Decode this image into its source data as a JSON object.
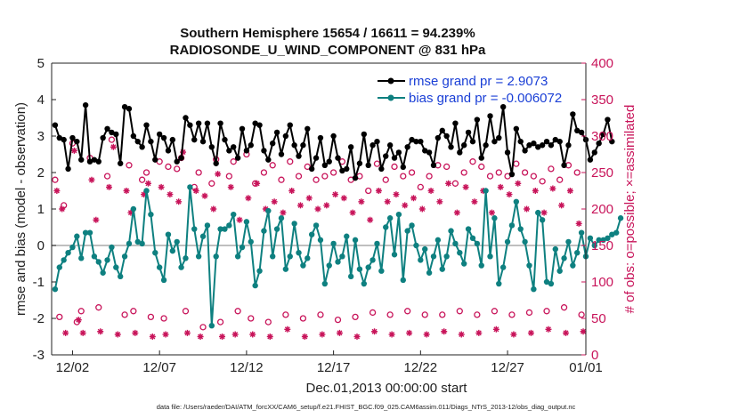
{
  "chart_data": {
    "type": "line",
    "title": "Southern Hemisphere 15654 / 16611 = 94.239%",
    "subtitle": "RADIOSONDE_U_WIND_COMPONENT @ 831 hPa",
    "xlabel": "Dec.01,2013 00:00:00 start",
    "ylabel": "rmse and bias (model - observation)",
    "y2label": "# of obs: o=possible; ×=assimilated",
    "footnote": "data file: /Users/raeder/DAI/ATM_forcXX/CAM6_setup/f.e21.FHIST_BGC.f09_025.CAM6assim.011/Diags_NTrS_2013-12/obs_diag_output.nc",
    "xlim": [
      0.8,
      31.5
    ],
    "ylim": [
      -3,
      5
    ],
    "y2lim": [
      0,
      400
    ],
    "x_ticks": [
      2,
      7,
      12,
      17,
      22,
      27,
      32
    ],
    "x_tick_labels": [
      "12/02",
      "12/07",
      "12/12",
      "12/17",
      "12/22",
      "12/27",
      "01/01"
    ],
    "y_ticks": [
      -3,
      -2,
      -1,
      0,
      1,
      2,
      3,
      4,
      5
    ],
    "y_tick_labels": [
      "-3",
      "-2",
      "-1",
      "0",
      "1",
      "2",
      "3",
      "4",
      "5"
    ],
    "y2_ticks": [
      0,
      50,
      100,
      150,
      200,
      250,
      300,
      350,
      400
    ],
    "y2_tick_labels": [
      "0",
      "50",
      "100",
      "150",
      "200",
      "250",
      "300",
      "350",
      "400"
    ],
    "x_start": 1.0,
    "x_step": 0.25,
    "legend": [
      "rmse grand pr = 2.9073",
      "bias grand pr = -0.006072"
    ],
    "legend_position": "top-right",
    "colors": {
      "rmse": "#000000",
      "bias": "#0e8080",
      "obs": "#c8145a",
      "zero": "#aaaaaa"
    },
    "series": [
      {
        "name": "rmse",
        "axis": "left",
        "values": [
          3.3,
          2.95,
          2.9,
          2.1,
          2.95,
          2.85,
          2.35,
          3.85,
          2.3,
          2.35,
          2.3,
          2.95,
          3.2,
          3.1,
          3.05,
          2.25,
          3.8,
          3.75,
          3.0,
          2.85,
          2.7,
          3.3,
          2.85,
          2.35,
          3.05,
          2.95,
          2.6,
          2.9,
          2.3,
          2.4,
          3.5,
          3.3,
          2.9,
          3.35,
          2.85,
          3.35,
          2.7,
          2.25,
          3.35,
          2.9,
          2.6,
          2.7,
          2.4,
          3.2,
          2.6,
          2.75,
          3.35,
          3.3,
          2.6,
          2.35,
          2.8,
          3.1,
          2.5,
          3.0,
          3.3,
          2.75,
          2.45,
          2.75,
          3.2,
          2.1,
          2.4,
          2.95,
          2.2,
          2.3,
          3.0,
          2.4,
          2.05,
          2.1,
          2.7,
          1.85,
          2.25,
          3.05,
          2.2,
          2.75,
          2.85,
          2.1,
          2.45,
          2.75,
          2.4,
          2.55,
          2.15,
          2.7,
          2.9,
          2.85,
          2.85,
          2.6,
          2.55,
          2.2,
          2.95,
          3.15,
          3.0,
          2.7,
          3.35,
          2.55,
          2.75,
          3.1,
          2.85,
          3.45,
          2.4,
          2.75,
          3.55,
          2.85,
          2.95,
          3.8,
          2.55,
          1.95,
          3.2,
          2.85,
          2.6,
          2.75,
          2.8,
          2.7,
          2.75,
          2.85,
          2.75,
          2.9,
          2.85,
          2.2,
          2.75,
          3.6,
          3.15,
          3.1,
          2.9,
          2.35,
          2.55,
          2.8,
          3.05,
          3.45,
          2.85
        ]
      },
      {
        "name": "bias",
        "axis": "left",
        "values": [
          -1.2,
          -0.6,
          -0.4,
          -0.2,
          -0.05,
          0.25,
          -0.35,
          0.35,
          0.35,
          -0.3,
          -0.45,
          -0.75,
          -0.4,
          -0.05,
          -0.6,
          -0.85,
          -0.3,
          0.05,
          1.0,
          0.1,
          0.05,
          1.5,
          0.85,
          -0.2,
          -0.6,
          -0.95,
          0.3,
          -0.15,
          0.1,
          -0.6,
          -0.35,
          1.6,
          0.45,
          -0.3,
          0.25,
          0.55,
          -2.2,
          -0.3,
          0.45,
          0.45,
          0.55,
          0.85,
          -0.3,
          -0.05,
          0.65,
          0.1,
          -1.1,
          -0.7,
          0.4,
          0.95,
          -0.3,
          0.45,
          0.75,
          -0.65,
          -0.3,
          0.6,
          -0.2,
          -0.55,
          -0.35,
          0.3,
          0.55,
          0.15,
          -1.05,
          -0.55,
          0.05,
          -0.45,
          -0.3,
          0.25,
          -0.85,
          0.15,
          -0.65,
          -1.05,
          -0.6,
          -0.4,
          0.05,
          -0.7,
          0.5,
          0.75,
          -0.25,
          0.85,
          -0.95,
          0.4,
          0.55,
          0.0,
          -0.4,
          -0.1,
          -0.75,
          -0.3,
          0.15,
          -0.65,
          -0.3,
          0.4,
          0.05,
          -0.2,
          -0.5,
          0.45,
          0.2,
          0.05,
          -0.55,
          1.5,
          -0.3,
          0.75,
          -1.05,
          -0.6,
          0.1,
          0.55,
          1.2,
          0.45,
          0.1,
          -0.55,
          -1.2,
          0.9,
          0.7,
          -1.0,
          -1.05,
          -0.1,
          -0.7,
          -0.35,
          0.1,
          -0.55,
          -0.2,
          0.35,
          -0.3,
          0.2,
          0.0,
          0.15,
          0.15,
          0.2,
          0.3,
          0.35,
          0.75
        ]
      },
      {
        "name": "obs_possible",
        "axis": "right",
        "x": [
          1.0,
          1.25,
          1.5,
          2.0,
          2.25,
          2.5,
          3.0,
          3.5,
          4.0,
          4.25,
          5.0,
          5.25,
          5.5,
          6.0,
          6.25,
          6.5,
          7.0,
          7.25,
          7.5,
          8.0,
          8.25,
          8.5,
          9.0,
          9.25,
          9.5,
          10.0,
          10.25,
          10.5,
          11.0,
          11.25,
          11.5,
          12.0,
          12.25,
          12.5,
          13.0,
          13.25,
          13.5,
          14.0,
          14.25,
          14.5,
          15.0,
          15.25,
          15.5,
          16.0,
          16.25,
          16.5,
          17.0,
          17.25,
          17.5,
          18.0,
          18.25,
          18.5,
          19.0,
          19.25,
          19.5,
          20.0,
          20.25,
          20.5,
          21.0,
          21.25,
          21.5,
          22.0,
          22.25,
          22.5,
          23.0,
          23.25,
          23.5,
          24.0,
          24.25,
          24.5,
          25.0,
          25.25,
          25.5,
          26.0,
          26.25,
          26.5,
          27.0,
          27.25,
          27.5,
          28.0,
          28.25,
          28.5,
          29.0,
          29.25,
          29.5,
          30.0,
          30.25,
          30.5,
          31.0,
          31.25
        ],
        "values": [
          240,
          52,
          205,
          290,
          45,
          60,
          270,
          65,
          245,
          295,
          55,
          260,
          60,
          240,
          250,
          52,
          265,
          50,
          258,
          255,
          270,
          60,
          230,
          250,
          38,
          235,
          268,
          45,
          245,
          265,
          60,
          275,
          50,
          235,
          250,
          45,
          260,
          240,
          55,
          265,
          245,
          50,
          258,
          240,
          55,
          245,
          250,
          48,
          265,
          240,
          52,
          245,
          225,
          58,
          262,
          240,
          55,
          258,
          245,
          60,
          250,
          230,
          55,
          245,
          260,
          55,
          258,
          235,
          60,
          250,
          265,
          55,
          258,
          245,
          60,
          250,
          245,
          55,
          262,
          250,
          58,
          245,
          238,
          60,
          255,
          240,
          65,
          260,
          250,
          55
        ]
      },
      {
        "name": "obs_assimilated",
        "axis": "right",
        "x": [
          1.1,
          1.4,
          1.6,
          2.1,
          2.35,
          2.6,
          3.1,
          3.35,
          3.6,
          4.1,
          4.35,
          4.6,
          5.1,
          5.35,
          5.6,
          6.1,
          6.35,
          6.6,
          7.1,
          7.35,
          7.6,
          8.1,
          8.35,
          8.6,
          9.1,
          9.35,
          9.6,
          10.1,
          10.35,
          10.6,
          11.1,
          11.35,
          11.6,
          12.1,
          12.35,
          12.6,
          13.1,
          13.35,
          13.6,
          14.1,
          14.35,
          14.6,
          15.1,
          15.35,
          15.6,
          16.1,
          16.35,
          16.6,
          17.1,
          17.35,
          17.6,
          18.1,
          18.35,
          18.6,
          19.1,
          19.35,
          19.6,
          20.1,
          20.35,
          20.6,
          21.1,
          21.35,
          21.6,
          22.1,
          22.35,
          22.6,
          23.1,
          23.35,
          23.6,
          24.1,
          24.35,
          24.6,
          25.1,
          25.35,
          25.6,
          26.1,
          26.35,
          26.6,
          27.1,
          27.35,
          27.6,
          28.1,
          28.35,
          28.6,
          29.1,
          29.35,
          29.6,
          30.1,
          30.35,
          30.6,
          31.1,
          31.35
        ],
        "values": [
          225,
          200,
          30,
          280,
          48,
          30,
          240,
          185,
          32,
          230,
          285,
          28,
          225,
          195,
          30,
          220,
          235,
          25,
          230,
          28,
          220,
          210,
          278,
          30,
          225,
          25,
          218,
          200,
          248,
          25,
          230,
          28,
          185,
          215,
          28,
          235,
          200,
          25,
          210,
          195,
          35,
          225,
          205,
          25,
          215,
          200,
          28,
          205,
          220,
          30,
          215,
          195,
          25,
          210,
          185,
          32,
          225,
          210,
          28,
          220,
          205,
          30,
          215,
          200,
          28,
          225,
          210,
          32,
          235,
          195,
          28,
          230,
          210,
          30,
          225,
          195,
          35,
          230,
          220,
          28,
          235,
          200,
          30,
          225,
          195,
          35,
          228,
          205,
          30,
          225,
          180,
          32
        ]
      }
    ]
  }
}
